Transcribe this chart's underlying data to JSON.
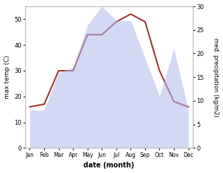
{
  "months": [
    "Jan",
    "Feb",
    "Mar",
    "Apr",
    "May",
    "Jun",
    "Jul",
    "Aug",
    "Sep",
    "Oct",
    "Nov",
    "Dec"
  ],
  "temperature": [
    16,
    17,
    30,
    30,
    44,
    44,
    49,
    52,
    49,
    30,
    18,
    16
  ],
  "precipitation": [
    8,
    8,
    16,
    17,
    26,
    30,
    27,
    27,
    19,
    11,
    21,
    8
  ],
  "temp_color": "#a03030",
  "precip_color": "#b0b8ee",
  "precip_alpha": 0.55,
  "ylabel_left": "max temp (C)",
  "ylabel_right": "med. precipitation (kg/m2)",
  "xlabel": "date (month)",
  "ylim_left": [
    0,
    55
  ],
  "ylim_right": [
    0,
    30
  ],
  "yticks_left": [
    0,
    10,
    20,
    30,
    40,
    50
  ],
  "yticks_right": [
    0,
    5,
    10,
    15,
    20,
    25,
    30
  ],
  "bg_color": "#ffffff",
  "spine_color": "#bbbbbb"
}
